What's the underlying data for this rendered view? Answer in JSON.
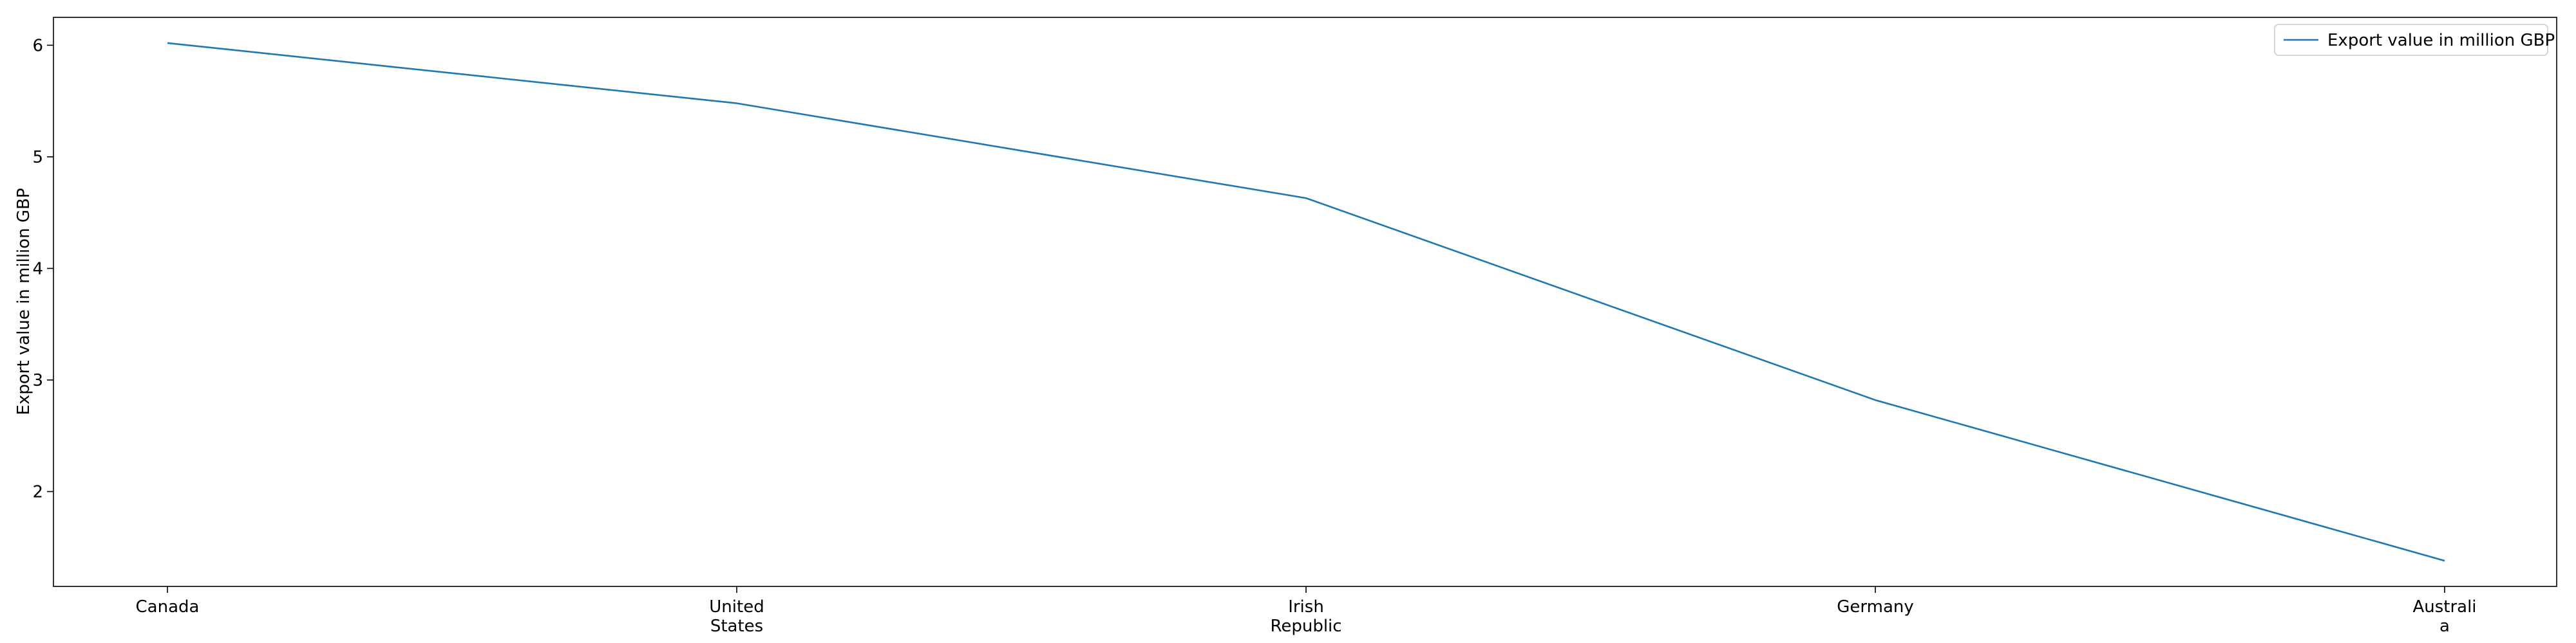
{
  "chart_data": {
    "type": "line",
    "categories": [
      [
        "Canada"
      ],
      [
        "United",
        "States"
      ],
      [
        "Irish",
        "Republic"
      ],
      [
        "Germany"
      ],
      [
        "Australi",
        "a"
      ]
    ],
    "series": [
      {
        "name": "Export value in million GBP",
        "values": [
          6.02,
          5.48,
          4.63,
          2.82,
          1.38
        ],
        "color": "#1f77b4"
      }
    ],
    "xlabel": "",
    "ylabel": "Export value in million GBP",
    "yticks": [
      2,
      3,
      4,
      5,
      6
    ],
    "ylim": [
      1.15,
      6.25
    ],
    "legend_position": "top-right",
    "grid": false
  }
}
